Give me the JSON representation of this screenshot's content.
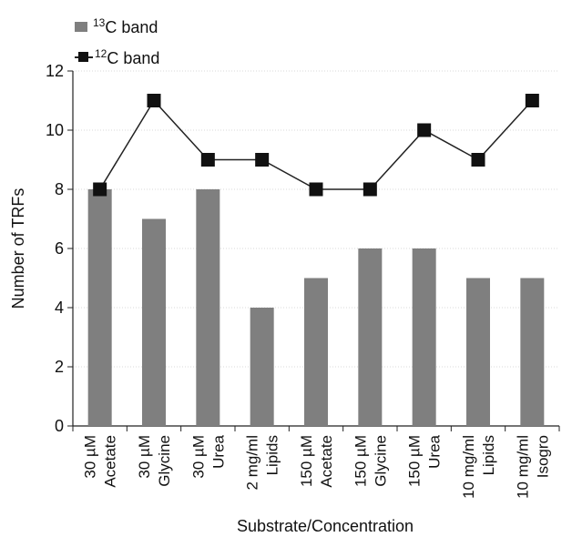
{
  "chart_data": {
    "type": "bar",
    "categories": [
      [
        "30 µM",
        "Acetate"
      ],
      [
        "30 µM",
        "Glycine"
      ],
      [
        "30 µM",
        "Urea"
      ],
      [
        "2 mg/ml",
        "Lipids"
      ],
      [
        "150 µM",
        "Acetate"
      ],
      [
        "150 µM",
        "Glycine"
      ],
      [
        "150 µM",
        "Urea"
      ],
      [
        "10 mg/ml",
        "Lipids"
      ],
      [
        "10 mg/ml",
        "Isogro"
      ]
    ],
    "series": [
      {
        "name": "13C band",
        "name_sup": "13",
        "name_rest": "C band",
        "kind": "bar",
        "color": "#7f7f7f",
        "values": [
          8,
          7,
          8,
          4,
          5,
          6,
          6,
          5,
          5
        ]
      },
      {
        "name": "12C band",
        "name_sup": "12",
        "name_rest": "C band",
        "kind": "line",
        "color": "#111111",
        "values": [
          8,
          11,
          9,
          9,
          8,
          8,
          10,
          9,
          11
        ]
      }
    ],
    "xlabel": "Substrate/Concentration",
    "ylabel": "Number of TRFs",
    "ylim": [
      0,
      12
    ],
    "yticks": [
      0,
      2,
      4,
      6,
      8,
      10,
      12
    ],
    "grid": true,
    "legend": "top-left"
  }
}
